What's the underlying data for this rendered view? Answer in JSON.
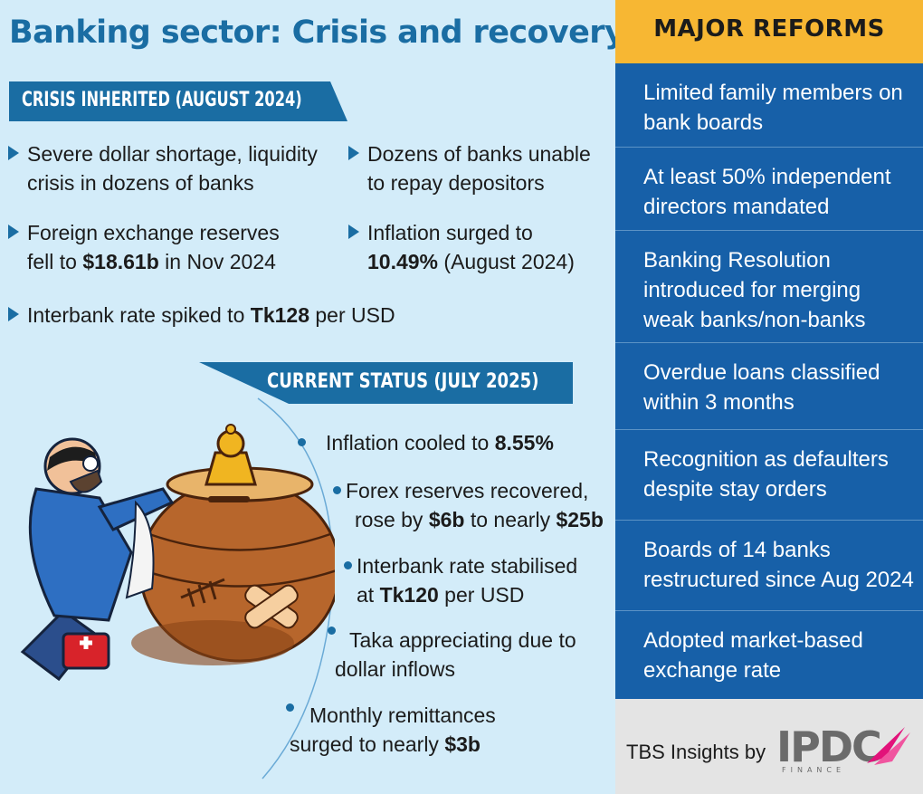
{
  "title": "Banking sector: Crisis and recovery",
  "crisis": {
    "heading": "CRISIS INHERITED (AUGUST 2024)",
    "items": [
      {
        "l1": "Severe dollar shortage, liquidity",
        "l2": "crisis in dozens of banks"
      },
      {
        "l1": "Dozens of banks unable",
        "l2": "to repay depositors"
      },
      {
        "l1": "Foreign exchange reserves",
        "l2a": "fell to ",
        "l2b": "$18.61b",
        "l2c": " in Nov 2024"
      },
      {
        "l1": "Inflation surged to",
        "l2b": "10.49%",
        "l2c": " (August 2024)"
      },
      {
        "l1a": "Interbank rate spiked to ",
        "l1b": "Tk128",
        "l1c": " per USD"
      }
    ]
  },
  "current": {
    "heading": "CURRENT STATUS (JULY 2025)",
    "items": [
      {
        "a": "Inflation cooled to ",
        "b": "8.55%"
      },
      {
        "l1": "Forex reserves recovered,",
        "l2a": "rose by ",
        "l2b": "$6b",
        "l2c": " to nearly ",
        "l2d": "$25b"
      },
      {
        "l1": "Interbank rate stabilised",
        "l2a": "at ",
        "l2b": "Tk120",
        "l2c": " per USD"
      },
      {
        "l1": "Taka appreciating due to",
        "l2": "dollar inflows"
      },
      {
        "l1": "Monthly remittances",
        "l2a": "surged to nearly ",
        "l2b": "$3b"
      }
    ]
  },
  "reforms": {
    "heading": "MAJOR REFORMS",
    "items": [
      "Limited family members on bank boards",
      "At least 50% independent directors mandated",
      "Banking Resolution introduced for merging weak banks/non-banks",
      "Overdue loans classified within 3 months",
      "Recognition as defaulters despite stay orders",
      "Boards of 14 banks restructured since Aug 2024",
      "Adopted market-based exchange rate"
    ]
  },
  "credit": "TBS Insights by",
  "logo": {
    "name": "IPDC",
    "sub": "FINANCE"
  },
  "colors": {
    "accent": "#1a6da3",
    "background": "#d3ecf9",
    "header": "#f7b733",
    "reforms_bg": "#1760a8"
  }
}
